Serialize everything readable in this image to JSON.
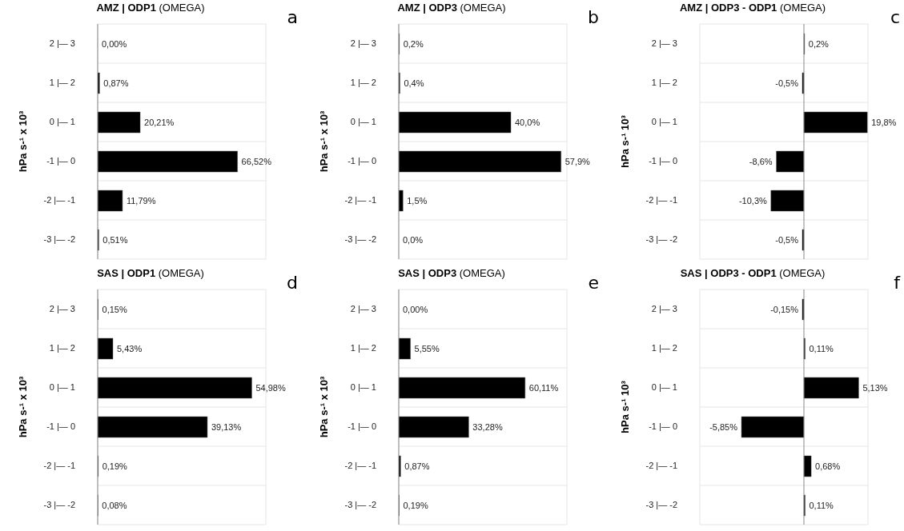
{
  "chart_data": [
    {
      "type": "bar",
      "orientation": "horizontal",
      "title": "AMZ | ODP1 (OMEGA)",
      "ylabel": "hPa s-¹ x 10³",
      "annotations": [
        "a"
      ],
      "categories": [
        "2 |— 3",
        "1 |— 2",
        "0 |— 1",
        "-1 |— 0",
        "-2 |— -1",
        "-3 |— -2"
      ],
      "values": [
        0.0,
        0.87,
        20.21,
        66.52,
        11.79,
        0.51
      ],
      "value_labels": [
        "0,00%",
        "0,87%",
        "20,21%",
        "66,52%",
        "11,79%",
        "0,51%"
      ],
      "color": "#000000",
      "grid": true
    },
    {
      "type": "bar",
      "orientation": "horizontal",
      "title": "AMZ | ODP3 (OMEGA)",
      "ylabel": "hPa s-¹ x 10³",
      "annotations": [
        "b"
      ],
      "categories": [
        "2 |— 3",
        "1 |— 2",
        "0 |— 1",
        "-1 |— 0",
        "-2 |— -1",
        "-3 |— -2"
      ],
      "values": [
        0.2,
        0.4,
        40.0,
        57.9,
        1.5,
        0.0
      ],
      "value_labels": [
        "0,2%",
        "0,4%",
        "40,0%",
        "57,9%",
        "1,5%",
        "0,0%"
      ],
      "color": "#000000",
      "grid": true
    },
    {
      "type": "bar",
      "orientation": "horizontal",
      "title": "AMZ | ODP3 - ODP1 (OMEGA)",
      "ylabel": "hPa s-¹ 10³",
      "annotations": [
        "c"
      ],
      "categories": [
        "2 |— 3",
        "1 |— 2",
        "0 |— 1",
        "-1 |— 0",
        "-2 |— -1",
        "-3 |— -2"
      ],
      "values": [
        0.2,
        -0.5,
        19.8,
        -8.6,
        -10.3,
        -0.5
      ],
      "value_labels": [
        "0,2%",
        "-0,5%",
        "19,8%",
        "-8,6%",
        "-10,3%",
        "-0,5%"
      ],
      "color": "#000000",
      "grid": true
    },
    {
      "type": "bar",
      "orientation": "horizontal",
      "title": "SAS | ODP1 (OMEGA)",
      "ylabel": "hPa s-¹ x 10³",
      "annotations": [
        "d"
      ],
      "categories": [
        "2 |— 3",
        "1 |— 2",
        "0 |— 1",
        "-1 |— 0",
        "-2 |— -1",
        "-3 |— -2"
      ],
      "values": [
        0.15,
        5.43,
        54.98,
        39.13,
        0.19,
        0.08
      ],
      "value_labels": [
        "0,15%",
        "5,43%",
        "54,98%",
        "39,13%",
        "0,19%",
        "0,08%"
      ],
      "color": "#000000",
      "grid": true
    },
    {
      "type": "bar",
      "orientation": "horizontal",
      "title": "SAS | ODP3 (OMEGA)",
      "ylabel": "hPa s-¹ x 10³",
      "annotations": [
        "e"
      ],
      "categories": [
        "2 |— 3",
        "1 |— 2",
        "0 |— 1",
        "-1 |— 0",
        "-2 |— -1",
        "-3 |— -2"
      ],
      "values": [
        0.0,
        5.55,
        60.11,
        33.28,
        0.87,
        0.19
      ],
      "value_labels": [
        "0,00%",
        "5,55%",
        "60,11%",
        "33,28%",
        "0,87%",
        "0,19%"
      ],
      "color": "#000000",
      "grid": true
    },
    {
      "type": "bar",
      "orientation": "horizontal",
      "title": "SAS | ODP3 - ODP1 (OMEGA)",
      "ylabel": "hPa s-¹ 10³",
      "annotations": [
        "f"
      ],
      "categories": [
        "2 |— 3",
        "1 |— 2",
        "0 |— 1",
        "-1 |— 0",
        "-2 |— -1",
        "-3 |— -2"
      ],
      "values": [
        -0.15,
        0.11,
        5.13,
        -5.85,
        0.68,
        0.11
      ],
      "value_labels": [
        "-0,15%",
        "0,11%",
        "5,13%",
        "-5,85%",
        "0,68%",
        "0,11%"
      ],
      "color": "#000000",
      "grid": true
    }
  ]
}
